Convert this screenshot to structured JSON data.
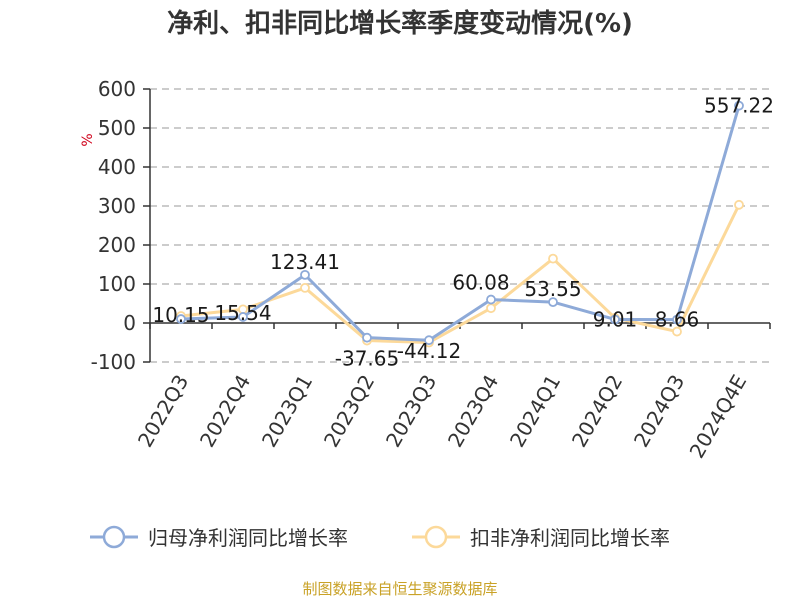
{
  "page": {
    "title": "净利、扣非同比增长率季度变动情况(%)",
    "source": "制图数据来自恒生聚源数据库"
  },
  "colors": {
    "series_1": "#8eaad8",
    "series_2": "#fcd99a",
    "grid": "#bbbbbb",
    "axis": "#333333",
    "unit": "#d0021b",
    "source": "#c9a227"
  },
  "chart_data": {
    "type": "line",
    "title": "净利、扣非同比增长率季度变动情况(%)",
    "unit_label": "%",
    "xlabel": "",
    "ylabel": "",
    "ylim": [
      -100,
      600
    ],
    "yticks": [
      600,
      500,
      400,
      300,
      200,
      100,
      0,
      -100
    ],
    "ytick_labels": [
      "600",
      "500",
      "400",
      "300",
      "200",
      "100",
      "0",
      "-100"
    ],
    "grid": true,
    "legend_position": "bottom",
    "categories": [
      "2022Q3",
      "2022Q4",
      "2023Q1",
      "2023Q2",
      "2023Q3",
      "2023Q4",
      "2024Q1",
      "2024Q2",
      "2024Q3",
      "2024Q4E"
    ],
    "series": [
      {
        "name": "归母净利润同比增长率",
        "values": [
          10.15,
          15.54,
          123.41,
          -37.65,
          -44.12,
          60.08,
          53.55,
          9.01,
          8.66,
          557.22
        ],
        "data_labels": [
          "10.15",
          "15.54",
          "123.41",
          "-37.65",
          "-44.12",
          "60.08",
          "53.55",
          "9.01",
          "8.66",
          "557.22"
        ]
      },
      {
        "name": "扣非净利润同比增长率",
        "values": [
          18,
          35,
          90,
          -45,
          -50,
          38,
          165,
          13,
          -22,
          303
        ]
      }
    ]
  }
}
